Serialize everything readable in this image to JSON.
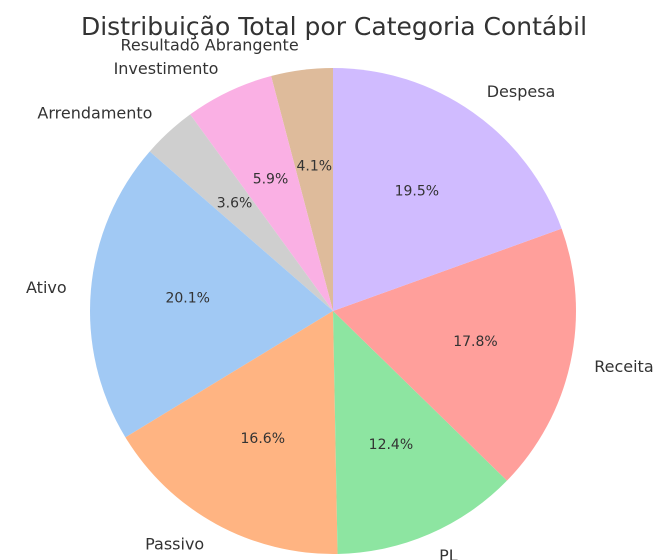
{
  "chart_data": {
    "type": "pie",
    "title": "Distribuição Total por Categoria Contábil",
    "categories": [
      "Resultado Abrangente",
      "Investimento",
      "Arrendamento",
      "Ativo",
      "Passivo",
      "PL",
      "Receita",
      "Despesa"
    ],
    "values": [
      4.1,
      5.9,
      3.6,
      20.1,
      16.6,
      12.4,
      17.8,
      19.5
    ],
    "value_labels": [
      "4.1%",
      "5.9%",
      "3.6%",
      "20.1%",
      "16.6%",
      "12.4%",
      "17.8%",
      "19.5%"
    ],
    "colors": [
      "#debb9b",
      "#fab0e4",
      "#cfcfcf",
      "#a1c9f4",
      "#ffb482",
      "#8de5a1",
      "#ff9f9b",
      "#d0bbff"
    ]
  }
}
